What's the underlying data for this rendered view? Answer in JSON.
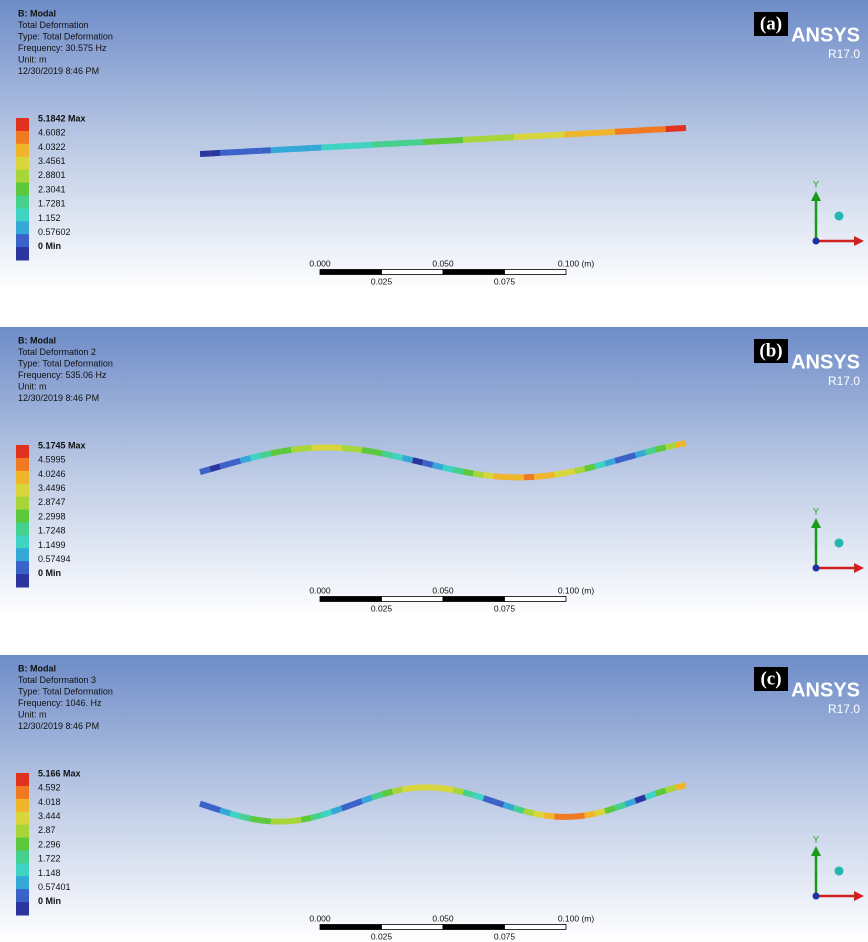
{
  "logo": {
    "name": "ANSYS",
    "version": "R17.0"
  },
  "axis_label": "Y",
  "panels": [
    {
      "label": "(a)",
      "header": [
        "B: Modal",
        "Total Deformation",
        "Type: Total Deformation",
        "Frequency: 30.575 Hz",
        "Unit: m",
        "12/30/2019 8:46 PM"
      ],
      "legend": [
        "5.1842 Max",
        "4.6082",
        "4.0322",
        "3.4561",
        "2.8801",
        "2.3041",
        "1.7281",
        "1.152",
        "0.57602",
        "0 Min"
      ],
      "scale_top": [
        "0.000",
        "0.050",
        "0.100 (m)"
      ],
      "scale_bottom": [
        "0.025",
        "0.075"
      ]
    },
    {
      "label": "(b)",
      "header": [
        "B: Modal",
        "Total Deformation 2",
        "Type: Total Deformation",
        "Frequency: 535.06 Hz",
        "Unit: m",
        "12/30/2019 8:46 PM"
      ],
      "legend": [
        "5.1745 Max",
        "4.5995",
        "4.0246",
        "3.4496",
        "2.8747",
        "2.2998",
        "1.7248",
        "1.1499",
        "0.57494",
        "0 Min"
      ],
      "scale_top": [
        "0.000",
        "0.050",
        "0.100 (m)"
      ],
      "scale_bottom": [
        "0.025",
        "0.075"
      ]
    },
    {
      "label": "(c)",
      "header": [
        "B: Modal",
        "Total Deformation 3",
        "Type: Total Deformation",
        "Frequency: 1046. Hz",
        "Unit: m",
        "12/30/2019 8:46 PM"
      ],
      "legend": [
        "5.166 Max",
        "4.592",
        "4.018",
        "3.444",
        "2.87",
        "2.296",
        "1.722",
        "1.148",
        "0.57401",
        "0 Min"
      ],
      "scale_top": [
        "0.000",
        "0.050",
        "0.100 (m)"
      ],
      "scale_bottom": [
        "0.025",
        "0.075"
      ]
    }
  ]
}
